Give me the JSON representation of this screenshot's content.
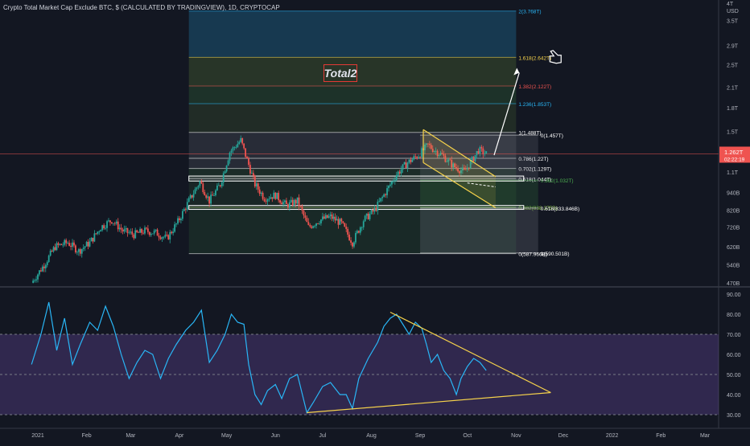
{
  "header": {
    "title": "Crypto Total Market Cap Exclude BTC, $ (CALCULATED BY TRADINGVIEW), 1D, CRYPTOCAP"
  },
  "annotation": {
    "label": "Total2"
  },
  "colors": {
    "background": "#131722",
    "candle_up": "#26a69a",
    "candle_down": "#ef5350",
    "rsi_line": "#29b6f6",
    "trendline": "#f7d34b",
    "arrow": "#ffffff",
    "price_badge": "#ef5350"
  },
  "icons": [
    "pointing-hand-icon"
  ],
  "price_badge": {
    "value": "1.262T",
    "countdown": "02:22:19"
  },
  "chart_data": [
    {
      "type": "candlestick",
      "name": "price",
      "y_scale": "log",
      "y_unit": "USD",
      "y_ticks": [
        "4T",
        "3.5T",
        "2.9T",
        "2.5T",
        "2.1T",
        "1.8T",
        "1.5T",
        "1.3T",
        "1.1T",
        "940B",
        "820B",
        "720B",
        "620B",
        "540B",
        "470B"
      ],
      "y_tick_values": [
        4000,
        3500,
        2900,
        2500,
        2100,
        1800,
        1500,
        1300,
        1100,
        940,
        820,
        720,
        620,
        540,
        470
      ],
      "x_ticks": [
        "2021",
        "Feb",
        "Mar",
        "Apr",
        "May",
        "Jun",
        "Jul",
        "Aug",
        "Sep",
        "Oct",
        "Nov",
        "Dec",
        "2022",
        "Feb",
        "Mar"
      ],
      "close_path": [
        {
          "date": "2020-12-28",
          "value": 470
        },
        {
          "date": "2021-01-05",
          "value": 540
        },
        {
          "date": "2021-01-12",
          "value": 620
        },
        {
          "date": "2021-01-20",
          "value": 640
        },
        {
          "date": "2021-01-27",
          "value": 600
        },
        {
          "date": "2021-02-03",
          "value": 640
        },
        {
          "date": "2021-02-10",
          "value": 720
        },
        {
          "date": "2021-02-17",
          "value": 760
        },
        {
          "date": "2021-02-24",
          "value": 700
        },
        {
          "date": "2021-03-03",
          "value": 680
        },
        {
          "date": "2021-03-10",
          "value": 700
        },
        {
          "date": "2021-03-17",
          "value": 690
        },
        {
          "date": "2021-03-24",
          "value": 660
        },
        {
          "date": "2021-03-31",
          "value": 750
        },
        {
          "date": "2021-04-07",
          "value": 880
        },
        {
          "date": "2021-04-14",
          "value": 1020
        },
        {
          "date": "2021-04-20",
          "value": 880
        },
        {
          "date": "2021-04-27",
          "value": 1000
        },
        {
          "date": "2021-05-03",
          "value": 1280
        },
        {
          "date": "2021-05-10",
          "value": 1400
        },
        {
          "date": "2021-05-13",
          "value": 1250
        },
        {
          "date": "2021-05-19",
          "value": 1000
        },
        {
          "date": "2021-05-25",
          "value": 900
        },
        {
          "date": "2021-06-01",
          "value": 920
        },
        {
          "date": "2021-06-08",
          "value": 850
        },
        {
          "date": "2021-06-15",
          "value": 880
        },
        {
          "date": "2021-06-22",
          "value": 720
        },
        {
          "date": "2021-06-29",
          "value": 760
        },
        {
          "date": "2021-07-06",
          "value": 780
        },
        {
          "date": "2021-07-13",
          "value": 740
        },
        {
          "date": "2021-07-20",
          "value": 640
        },
        {
          "date": "2021-07-27",
          "value": 760
        },
        {
          "date": "2021-08-03",
          "value": 820
        },
        {
          "date": "2021-08-10",
          "value": 940
        },
        {
          "date": "2021-08-17",
          "value": 1080
        },
        {
          "date": "2021-08-24",
          "value": 1180
        },
        {
          "date": "2021-08-31",
          "value": 1250
        },
        {
          "date": "2021-09-06",
          "value": 1350
        },
        {
          "date": "2021-09-10",
          "value": 1300
        },
        {
          "date": "2021-09-15",
          "value": 1250
        },
        {
          "date": "2021-09-22",
          "value": 1150
        },
        {
          "date": "2021-09-29",
          "value": 1100
        },
        {
          "date": "2021-10-04",
          "value": 1200
        },
        {
          "date": "2021-10-08",
          "value": 1300
        },
        {
          "date": "2021-10-13",
          "value": 1262
        }
      ],
      "fib_levels_large": [
        {
          "label": "2(3.768T)",
          "value": 3768,
          "color": "#29b6f6"
        },
        {
          "label": "1.618(2.642T)",
          "value": 2642,
          "color": "#f7d34b"
        },
        {
          "label": "1.382(2.122T)",
          "value": 2122,
          "color": "#ef5350"
        },
        {
          "label": "1.236(1.853T)",
          "value": 1853,
          "color": "#29b6f6"
        },
        {
          "label": "1(1.488T)",
          "value": 1488,
          "color": "#ffffff"
        },
        {
          "label": "0.786(1.22T)",
          "value": 1220,
          "color": "#ffffff"
        },
        {
          "label": "0.702(1.129T)",
          "value": 1129,
          "color": "#ffffff"
        },
        {
          "label": "0.618(1.044T)",
          "value": 1044,
          "color": "#ffffff"
        },
        {
          "label": "0.382(838.375B)",
          "value": 838.375,
          "color": "#8bc34a"
        },
        {
          "label": "0(587.966B)",
          "value": 587.966,
          "color": "#ffffff"
        }
      ],
      "fib_levels_small": [
        {
          "label": "0(1.457T)",
          "value": 1457,
          "color": "#ffffff"
        },
        {
          "label": "0.382(1.032T)",
          "value": 1032,
          "color": "#4caf50"
        },
        {
          "label": "0.618(833.846B)",
          "value": 833.846,
          "color": "#ffffff"
        },
        {
          "label": "1(590.501B)",
          "value": 590.501,
          "color": "#ffffff"
        }
      ]
    },
    {
      "type": "line",
      "name": "RSI",
      "y_ticks": [
        "90.00",
        "80.00",
        "70.00",
        "60.00",
        "50.00",
        "40.00",
        "30.00"
      ],
      "y_tick_values": [
        90,
        80,
        70,
        60,
        50,
        40,
        30
      ],
      "ylim": [
        27,
        92
      ],
      "overbought": 70,
      "oversold": 30,
      "x_ticks": [
        "2021",
        "Feb",
        "Mar",
        "Apr",
        "May",
        "Jun",
        "Jul",
        "Aug",
        "Sep",
        "Oct",
        "Nov",
        "Dec",
        "2022",
        "Feb",
        "Mar"
      ],
      "points": [
        {
          "date": "2020-12-28",
          "value": 55
        },
        {
          "date": "2021-01-03",
          "value": 70
        },
        {
          "date": "2021-01-08",
          "value": 86
        },
        {
          "date": "2021-01-13",
          "value": 62
        },
        {
          "date": "2021-01-18",
          "value": 78
        },
        {
          "date": "2021-01-23",
          "value": 55
        },
        {
          "date": "2021-01-28",
          "value": 65
        },
        {
          "date": "2021-02-03",
          "value": 76
        },
        {
          "date": "2021-02-08",
          "value": 72
        },
        {
          "date": "2021-02-13",
          "value": 84
        },
        {
          "date": "2021-02-18",
          "value": 74
        },
        {
          "date": "2021-02-23",
          "value": 60
        },
        {
          "date": "2021-02-28",
          "value": 48
        },
        {
          "date": "2021-03-05",
          "value": 56
        },
        {
          "date": "2021-03-10",
          "value": 62
        },
        {
          "date": "2021-03-15",
          "value": 60
        },
        {
          "date": "2021-03-20",
          "value": 48
        },
        {
          "date": "2021-03-25",
          "value": 58
        },
        {
          "date": "2021-03-30",
          "value": 65
        },
        {
          "date": "2021-04-05",
          "value": 72
        },
        {
          "date": "2021-04-10",
          "value": 76
        },
        {
          "date": "2021-04-15",
          "value": 82
        },
        {
          "date": "2021-04-20",
          "value": 56
        },
        {
          "date": "2021-04-25",
          "value": 62
        },
        {
          "date": "2021-04-30",
          "value": 70
        },
        {
          "date": "2021-05-04",
          "value": 80
        },
        {
          "date": "2021-05-08",
          "value": 76
        },
        {
          "date": "2021-05-12",
          "value": 75
        },
        {
          "date": "2021-05-15",
          "value": 55
        },
        {
          "date": "2021-05-19",
          "value": 40
        },
        {
          "date": "2021-05-23",
          "value": 35
        },
        {
          "date": "2021-05-27",
          "value": 42
        },
        {
          "date": "2021-06-01",
          "value": 45
        },
        {
          "date": "2021-06-05",
          "value": 38
        },
        {
          "date": "2021-06-10",
          "value": 48
        },
        {
          "date": "2021-06-15",
          "value": 50
        },
        {
          "date": "2021-06-21",
          "value": 31
        },
        {
          "date": "2021-06-25",
          "value": 36
        },
        {
          "date": "2021-07-01",
          "value": 44
        },
        {
          "date": "2021-07-06",
          "value": 46
        },
        {
          "date": "2021-07-12",
          "value": 40
        },
        {
          "date": "2021-07-16",
          "value": 40
        },
        {
          "date": "2021-07-20",
          "value": 33
        },
        {
          "date": "2021-07-24",
          "value": 48
        },
        {
          "date": "2021-07-30",
          "value": 58
        },
        {
          "date": "2021-08-05",
          "value": 66
        },
        {
          "date": "2021-08-09",
          "value": 74
        },
        {
          "date": "2021-08-13",
          "value": 78
        },
        {
          "date": "2021-08-17",
          "value": 80
        },
        {
          "date": "2021-08-21",
          "value": 75
        },
        {
          "date": "2021-08-25",
          "value": 70
        },
        {
          "date": "2021-08-29",
          "value": 76
        },
        {
          "date": "2021-09-02",
          "value": 73
        },
        {
          "date": "2021-09-05",
          "value": 65
        },
        {
          "date": "2021-09-08",
          "value": 56
        },
        {
          "date": "2021-09-12",
          "value": 60
        },
        {
          "date": "2021-09-16",
          "value": 52
        },
        {
          "date": "2021-09-20",
          "value": 48
        },
        {
          "date": "2021-09-24",
          "value": 40
        },
        {
          "date": "2021-09-27",
          "value": 48
        },
        {
          "date": "2021-10-01",
          "value": 54
        },
        {
          "date": "2021-10-05",
          "value": 58
        },
        {
          "date": "2021-10-09",
          "value": 56
        },
        {
          "date": "2021-10-13",
          "value": 52
        }
      ]
    }
  ]
}
